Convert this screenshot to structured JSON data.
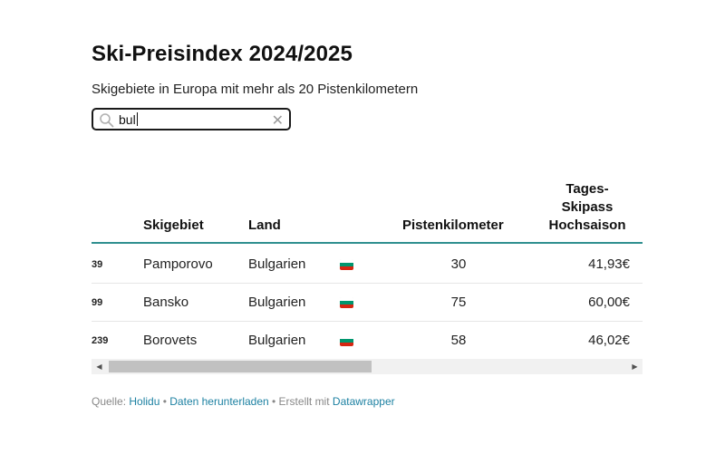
{
  "header": {
    "title": "Ski-Preisindex 2024/2025",
    "subtitle": "Skigebiete in Europa mit mehr als 20 Pistenkilometern"
  },
  "search": {
    "value": "bul",
    "icon": "search-icon",
    "clear_icon": "close-icon",
    "clear_glyph": "✕"
  },
  "table": {
    "columns": {
      "skigebiet": "Skigebiet",
      "land": "Land",
      "pistenkilometer": "Pistenkilometer",
      "skipass_line1": "Tages-",
      "skipass_line2": "Skipass",
      "skipass_line3": "Hochsaison"
    },
    "rows": [
      {
        "rank": "39",
        "name": "Pamporovo",
        "land": "Bulgarien",
        "km": "30",
        "price": "41,93€"
      },
      {
        "rank": "99",
        "name": "Bansko",
        "land": "Bulgarien",
        "km": "75",
        "price": "60,00€"
      },
      {
        "rank": "239",
        "name": "Borovets",
        "land": "Bulgarien",
        "km": "58",
        "price": "46,02€"
      }
    ],
    "flag_colors": [
      "#ffffff",
      "#00966e",
      "#d62612"
    ]
  },
  "scrollbar": {
    "left_glyph": "◀",
    "right_glyph": "▶"
  },
  "footer": {
    "source_label": "Quelle: ",
    "source_link": "Holidu",
    "separator1": " • ",
    "download_link": "Daten herunterladen",
    "separator2": " • Erstellt mit ",
    "tool_link": "Datawrapper"
  },
  "colors": {
    "accent_rule": "#2f8f8f",
    "link": "#1d81a2"
  }
}
